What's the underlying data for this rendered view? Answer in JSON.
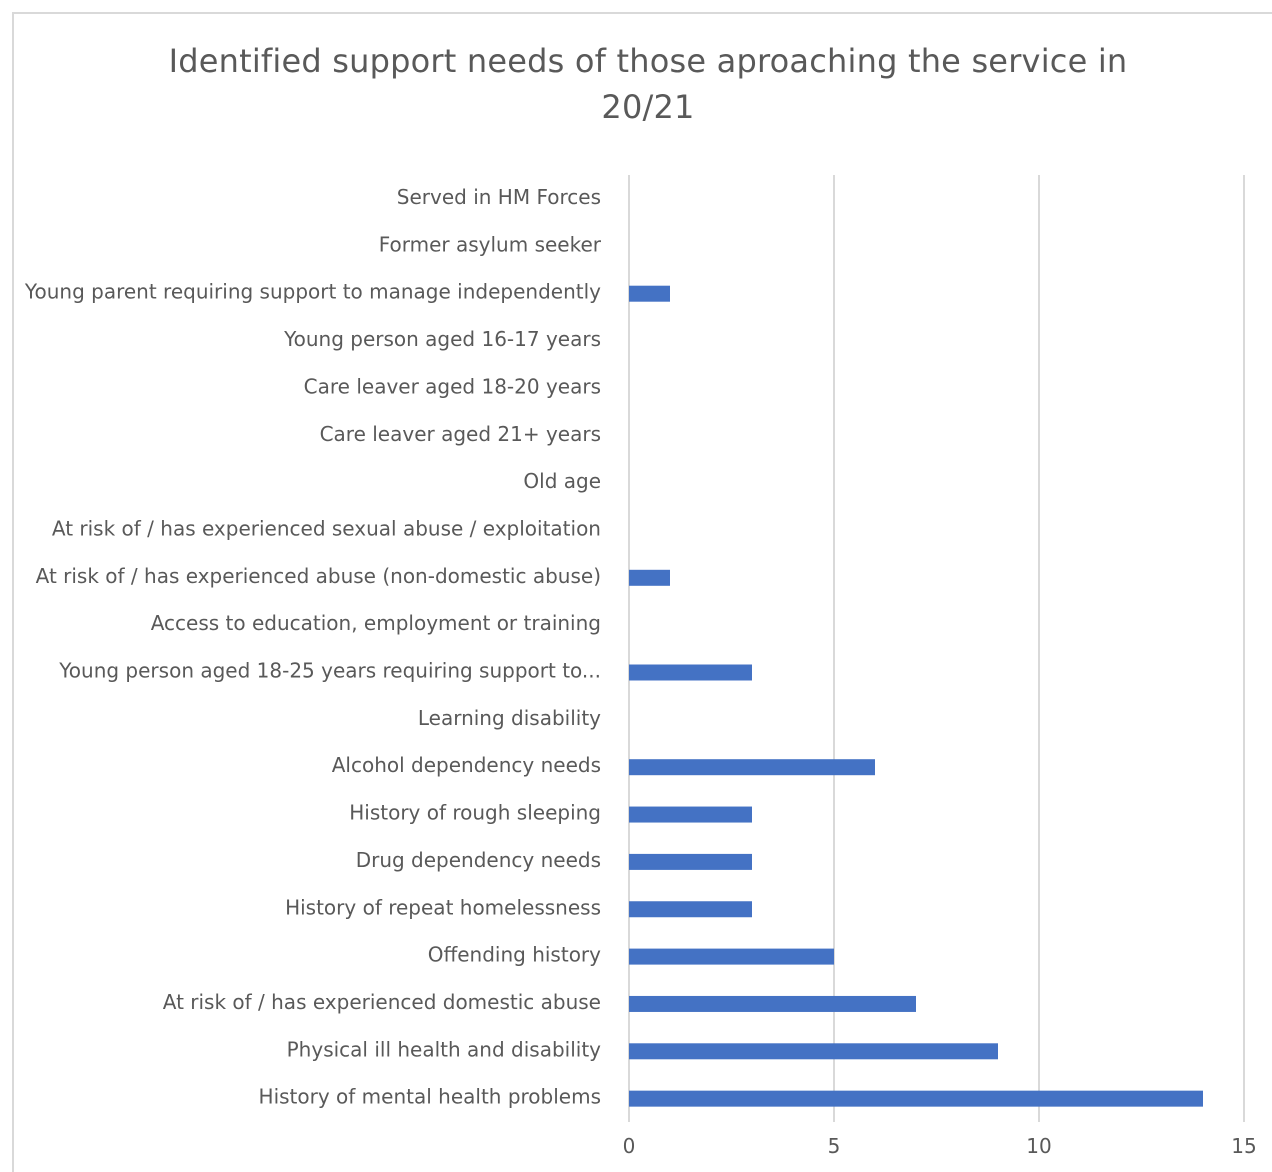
{
  "chart_data": {
    "type": "bar",
    "orientation": "horizontal",
    "title_lines": [
      "Identified support needs of those aproaching the service in",
      "20/21"
    ],
    "categories": [
      "Served in HM Forces",
      "Former asylum seeker",
      "Young parent requiring support to manage independently",
      "Young person aged 16-17 years",
      "Care leaver aged 18-20 years",
      "Care leaver aged 21+ years",
      "Old age",
      "At risk of / has experienced sexual abuse / exploitation",
      "At risk of / has experienced abuse (non-domestic abuse)",
      "Access to education, employment or training",
      "Young person aged 18-25 years requiring support to...",
      "Learning disability",
      "Alcohol dependency needs",
      "History of rough sleeping",
      "Drug dependency needs",
      "History of repeat homelessness",
      "Offending history",
      "At risk of / has experienced domestic abuse",
      "Physical ill health and disability",
      "History of mental health problems"
    ],
    "values": [
      0,
      0,
      1,
      0,
      0,
      0,
      0,
      0,
      1,
      0,
      3,
      0,
      6,
      3,
      3,
      3,
      5,
      7,
      9,
      14
    ],
    "xlim": [
      0,
      15
    ],
    "xticks": [
      "0",
      "5",
      "10",
      "15"
    ],
    "grid": true,
    "legend": "none",
    "bar_color": "#4472c4",
    "grid_color": "#d9d9d9"
  }
}
